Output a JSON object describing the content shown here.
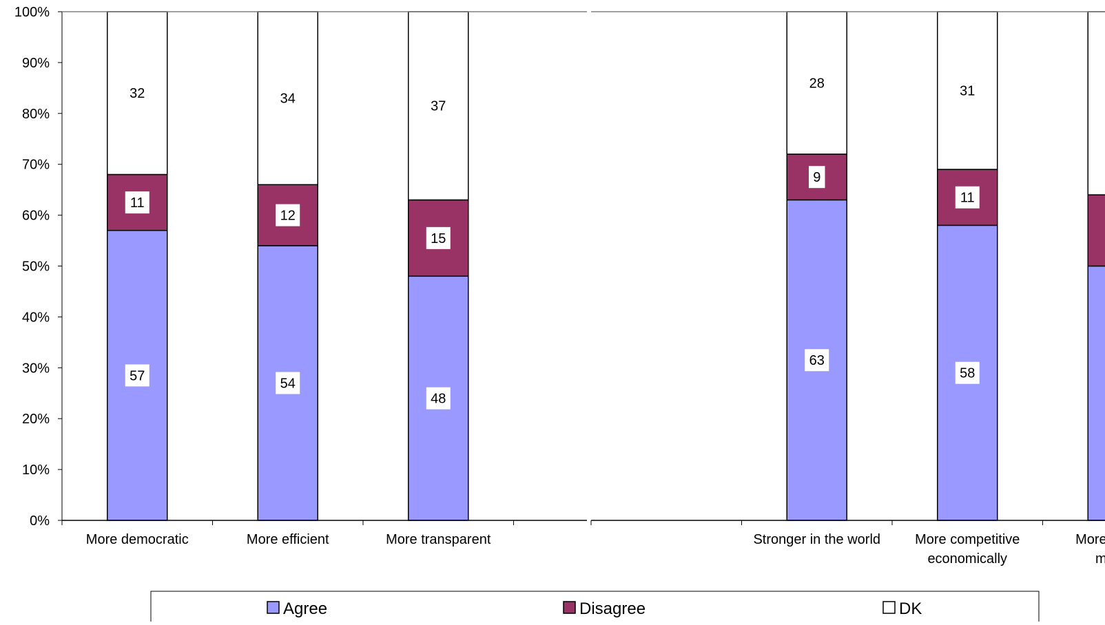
{
  "chart_data": {
    "type": "bar",
    "stacked": true,
    "stack_mode": "percent",
    "ylim": [
      0,
      100
    ],
    "y_ticks": [
      "0%",
      "10%",
      "20%",
      "30%",
      "40%",
      "50%",
      "60%",
      "70%",
      "80%",
      "90%",
      "100%"
    ],
    "grid": false,
    "legend_position": "bottom",
    "panels": [
      {
        "categories": [
          [
            "More democratic"
          ],
          [
            "More efficient"
          ],
          [
            "More transparent"
          ]
        ],
        "slots": 4
      },
      {
        "categories": [
          [
            "Stronger in the world"
          ],
          [
            "More competitive",
            "economically"
          ],
          [
            "More socially-",
            "minded"
          ]
        ],
        "slots": 4,
        "leading_empty": 1
      }
    ],
    "series": [
      {
        "name": "Agree",
        "color": "#9999ff",
        "values": [
          57,
          54,
          48,
          63,
          58,
          50
        ]
      },
      {
        "name": "Disagree",
        "color": "#993366",
        "values": [
          11,
          12,
          15,
          9,
          11,
          14
        ]
      },
      {
        "name": "DK",
        "color": "#ffffff",
        "values": [
          32,
          34,
          37,
          28,
          31,
          36
        ]
      }
    ]
  }
}
